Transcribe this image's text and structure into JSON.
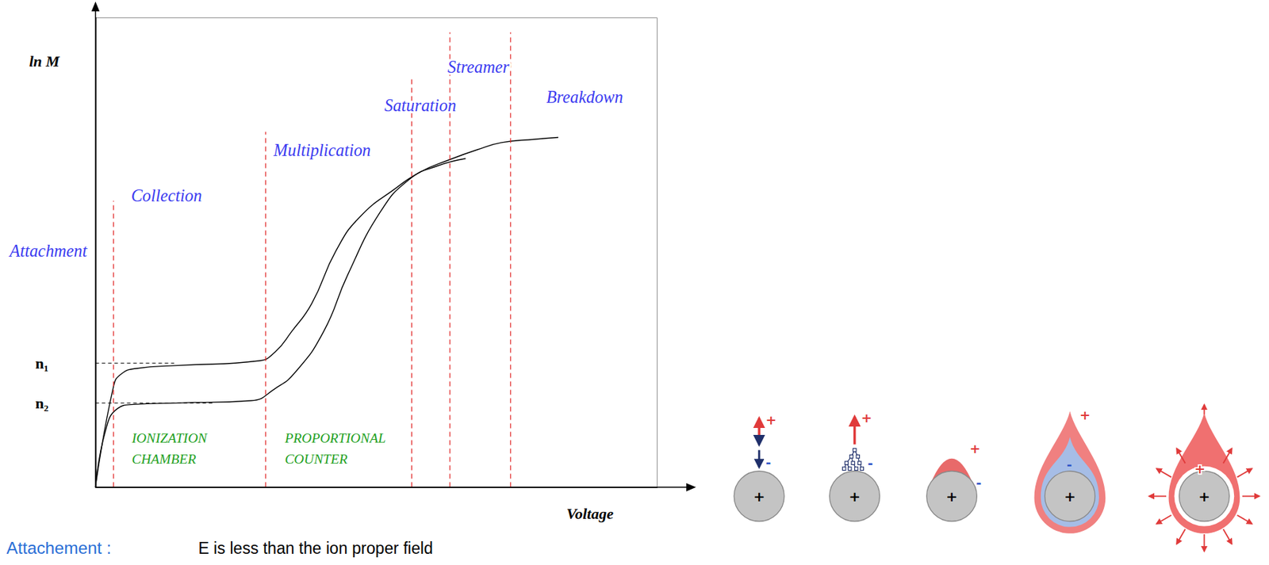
{
  "chart_data": {
    "type": "line",
    "x_label": "Voltage",
    "y_label": "ln M",
    "xlim": [
      0,
      100
    ],
    "ylim": [
      0,
      100
    ],
    "yticks": [
      {
        "value": 26.4,
        "label": "n₁"
      },
      {
        "value": 17.9,
        "label": "n₂"
      }
    ],
    "tick_labels": "y",
    "grid": false,
    "series": [
      {
        "color": "#000000",
        "line_style": "solid",
        "x": [
          0,
          3.2,
          4.6,
          7.5,
          14.7,
          29.1,
          32,
          34.9,
          38.5,
          42.8,
          47.1,
          53.6,
          57.9,
          62.9,
          68,
          72.3,
          78.1,
          82.4
        ],
        "values": [
          0,
          21.4,
          24.1,
          25.3,
          25.9,
          26.9,
          28.8,
          33.1,
          39.1,
          50.3,
          57.6,
          63.8,
          67.2,
          69.7,
          71.9,
          73.4,
          74.1,
          74.5
        ]
      },
      {
        "color": "#000000",
        "line_style": "solid",
        "x": [
          0,
          1.7,
          3.9,
          6.8,
          14.7,
          27.7,
          32,
          35.6,
          40.6,
          44.9,
          50.7,
          55.8,
          60.8,
          65.9
        ],
        "values": [
          0,
          11.6,
          16.7,
          17.6,
          17.9,
          18.4,
          21,
          24.5,
          33.1,
          45.2,
          58.6,
          65.5,
          68.4,
          70
        ]
      }
    ],
    "boundaries": [
      {
        "x": 3.2,
        "top": 61
      },
      {
        "x": 30.3,
        "top": 75.7
      },
      {
        "x": 56.3,
        "top": 86.9
      },
      {
        "x": 63.1,
        "top": 96.9
      },
      {
        "x": 73.9,
        "top": 96.9
      }
    ],
    "levels": [
      {
        "y": 26.4,
        "x_end": 14
      },
      {
        "y": 17.9,
        "x_end": 21.2
      }
    ],
    "regions": [
      "Attachment",
      "Collection",
      "Multiplication",
      "Saturation",
      "Streamer",
      "Breakdown"
    ],
    "modes": [
      [
        "IONIZATION",
        "CHAMBER"
      ],
      [
        "PROPORTIONAL",
        "COUNTER"
      ]
    ]
  },
  "diagram": {
    "anode": "+",
    "positive": "+",
    "negative": "-"
  },
  "caption": {
    "term": "Attachement :",
    "text": "E is less than the ion proper field"
  }
}
